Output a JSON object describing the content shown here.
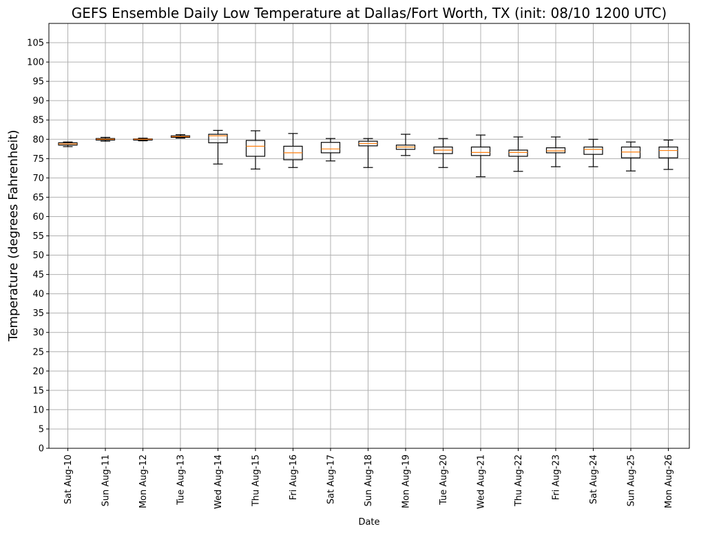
{
  "chart_data": {
    "type": "box",
    "title": "GEFS Ensemble Daily Low Temperature at Dallas/Fort Worth, TX (init: 08/10 1200 UTC)",
    "xlabel": "Date",
    "ylabel": "Temperature (degrees Fahrenheit)",
    "ylim": [
      0,
      110
    ],
    "yticks": [
      0,
      5,
      10,
      15,
      20,
      25,
      30,
      35,
      40,
      45,
      50,
      55,
      60,
      65,
      70,
      75,
      80,
      85,
      90,
      95,
      100,
      105
    ],
    "grid": true,
    "colors": {
      "box": "#000000",
      "median": "#ff7f0e",
      "grid": "#b0b0b0"
    },
    "categories": [
      "Sat Aug-10",
      "Sun Aug-11",
      "Mon Aug-12",
      "Tue Aug-13",
      "Wed Aug-14",
      "Thu Aug-15",
      "Fri Aug-16",
      "Sat Aug-17",
      "Sun Aug-18",
      "Mon Aug-19",
      "Tue Aug-20",
      "Wed Aug-21",
      "Thu Aug-22",
      "Fri Aug-23",
      "Sat Aug-24",
      "Sun Aug-25",
      "Mon Aug-26"
    ],
    "boxes": [
      {
        "whislo": 78.1,
        "q1": 78.5,
        "med": 78.8,
        "q3": 79.1,
        "whishi": 79.3
      },
      {
        "whislo": 79.5,
        "q1": 79.8,
        "med": 80.0,
        "q3": 80.2,
        "whishi": 80.5
      },
      {
        "whislo": 79.6,
        "q1": 79.8,
        "med": 80.0,
        "q3": 80.1,
        "whishi": 80.3
      },
      {
        "whislo": 80.3,
        "q1": 80.5,
        "med": 80.7,
        "q3": 80.9,
        "whishi": 81.2
      },
      {
        "whislo": 73.6,
        "q1": 79.1,
        "med": 80.9,
        "q3": 81.3,
        "whishi": 82.3
      },
      {
        "whislo": 72.3,
        "q1": 75.6,
        "med": 78.2,
        "q3": 79.7,
        "whishi": 82.2
      },
      {
        "whislo": 72.7,
        "q1": 74.7,
        "med": 76.5,
        "q3": 78.2,
        "whishi": 81.5
      },
      {
        "whislo": 74.4,
        "q1": 76.5,
        "med": 77.5,
        "q3": 79.2,
        "whishi": 80.2
      },
      {
        "whislo": 72.7,
        "q1": 78.3,
        "med": 78.9,
        "q3": 79.5,
        "whishi": 80.2
      },
      {
        "whislo": 75.8,
        "q1": 77.4,
        "med": 78.0,
        "q3": 78.5,
        "whishi": 81.3
      },
      {
        "whislo": 72.7,
        "q1": 76.3,
        "med": 77.2,
        "q3": 78.0,
        "whishi": 80.2
      },
      {
        "whislo": 70.3,
        "q1": 75.8,
        "med": 76.6,
        "q3": 78.0,
        "whishi": 81.1
      },
      {
        "whislo": 71.7,
        "q1": 75.6,
        "med": 76.6,
        "q3": 77.2,
        "whishi": 80.6
      },
      {
        "whislo": 72.9,
        "q1": 76.5,
        "med": 77.0,
        "q3": 77.8,
        "whishi": 80.6
      },
      {
        "whislo": 72.9,
        "q1": 76.1,
        "med": 77.4,
        "q3": 78.0,
        "whishi": 80.0
      },
      {
        "whislo": 71.8,
        "q1": 75.2,
        "med": 76.7,
        "q3": 78.0,
        "whishi": 79.3
      },
      {
        "whislo": 72.2,
        "q1": 75.2,
        "med": 77.1,
        "q3": 78.0,
        "whishi": 79.8
      }
    ]
  }
}
